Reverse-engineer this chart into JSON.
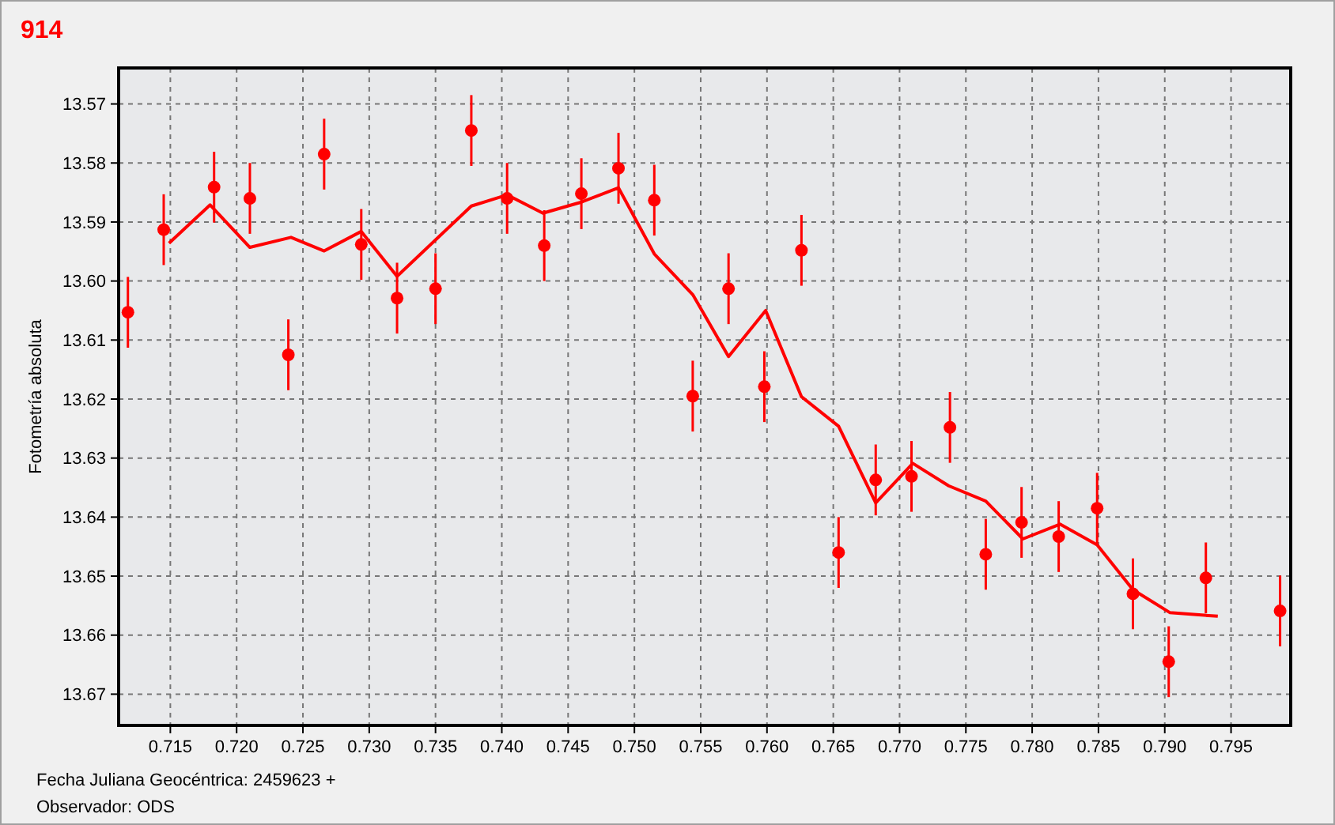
{
  "chart_data": {
    "type": "scatter",
    "title": "914",
    "xlabel": "Fecha Juliana Geocéntrica: 2459623 +",
    "ylabel": "Fotometría absoluta",
    "annotations": [
      "Observador: ODS"
    ],
    "xlim": [
      0.7111,
      0.7995
    ],
    "ylim": [
      13.6753,
      13.5639
    ],
    "xticks": [
      0.715,
      {
        "value": 0.72,
        "label": "0.720"
      },
      0.725,
      {
        "value": 0.73,
        "label": "0.730"
      },
      0.735,
      {
        "value": 0.74,
        "label": "0.740"
      },
      0.745,
      {
        "value": 0.75,
        "label": "0.750"
      },
      0.755,
      {
        "value": 0.76,
        "label": "0.760"
      },
      0.765,
      {
        "value": 0.77,
        "label": "0.770"
      },
      0.775,
      {
        "value": 0.78,
        "label": "0.780"
      },
      0.785,
      {
        "value": 0.79,
        "label": "0.790"
      },
      0.795
    ],
    "yticks": [
      13.57,
      13.58,
      13.59,
      {
        "value": 13.6,
        "label": "13.60"
      },
      13.61,
      13.62,
      13.63,
      13.64,
      13.65,
      13.66,
      13.67
    ],
    "grid": true,
    "series": [
      {
        "color": "#ff0000",
        "marker": "circle",
        "x": [
          0.7118,
          0.7145,
          0.7183,
          0.721,
          0.7239,
          0.7266,
          0.7294,
          0.7321,
          0.735,
          0.7377,
          0.7404,
          0.7432,
          0.746,
          0.7488,
          0.7515,
          0.7544,
          0.7571,
          0.7598,
          0.7626,
          0.7654,
          0.7682,
          0.7709,
          0.7738,
          0.7765,
          0.7792,
          0.782,
          0.7849,
          0.7876,
          0.7903,
          0.7931,
          0.7987
        ],
        "values": [
          13.6053,
          13.5913,
          13.5841,
          13.586,
          13.6125,
          13.5785,
          13.5938,
          13.6029,
          13.6013,
          13.5745,
          13.586,
          13.594,
          13.5852,
          13.5809,
          13.5863,
          13.6195,
          13.6013,
          13.6179,
          13.5948,
          13.646,
          13.6337,
          13.6331,
          13.6248,
          13.6463,
          13.6409,
          13.6433,
          13.6385,
          13.653,
          13.6645,
          13.6503,
          13.6559
        ],
        "errors": [
          0.006,
          0.006,
          0.006,
          0.006,
          0.006,
          0.006,
          0.006,
          0.006,
          0.006,
          0.006,
          0.006,
          0.006,
          0.006,
          0.006,
          0.006,
          0.006,
          0.006,
          0.006,
          0.006,
          0.006,
          0.006,
          0.006,
          0.006,
          0.006,
          0.006,
          0.006,
          0.006,
          0.006,
          0.006,
          0.006,
          0.006
        ]
      },
      {
        "type": "line",
        "color": "#ff0000",
        "line_style": "solid",
        "x": [
          0.7149,
          0.718,
          0.721,
          0.7241,
          0.7266,
          0.7294,
          0.7321,
          0.7377,
          0.7404,
          0.7431,
          0.7459,
          0.7488,
          0.7515,
          0.7544,
          0.7571,
          0.7599,
          0.7626,
          0.7654,
          0.7682,
          0.771,
          0.7737,
          0.7765,
          0.7793,
          0.7821,
          0.7849,
          0.7876,
          0.7904,
          0.794
        ],
        "values": [
          13.5936,
          13.5871,
          13.5943,
          13.5926,
          13.5949,
          13.5916,
          13.5992,
          13.5873,
          13.5854,
          13.5885,
          13.5867,
          13.5842,
          13.5954,
          13.6023,
          13.6128,
          13.605,
          13.6196,
          13.6246,
          13.6376,
          13.6309,
          13.6347,
          13.6373,
          13.6437,
          13.6412,
          13.6447,
          13.6523,
          13.6562,
          13.6568
        ]
      }
    ]
  }
}
